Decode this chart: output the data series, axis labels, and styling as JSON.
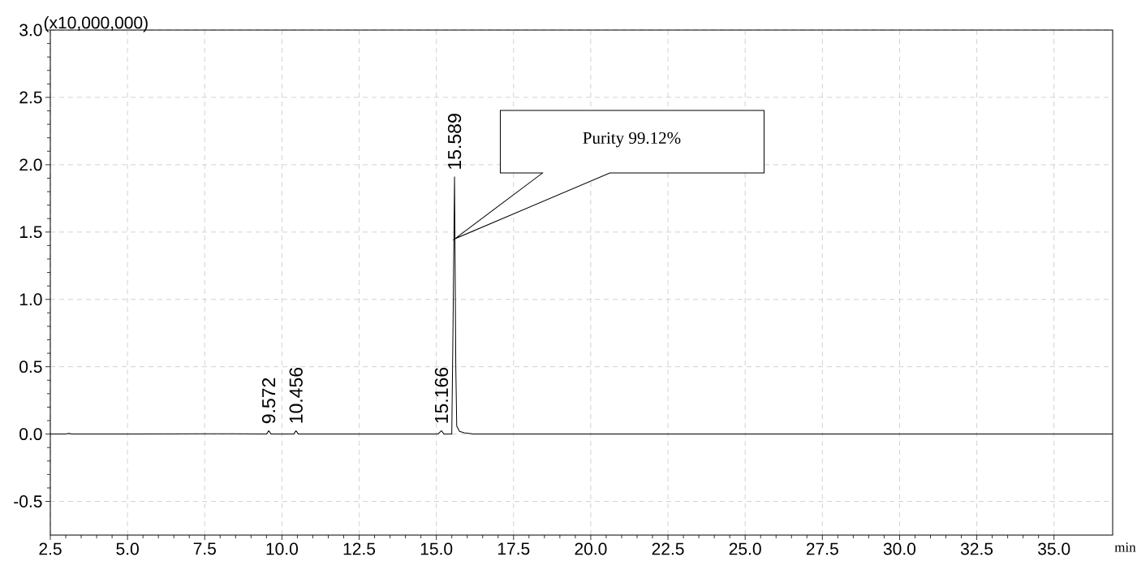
{
  "chart_data": {
    "type": "line",
    "xlabel": "min",
    "ylabel": "(x10,000,000)",
    "color": "#000000",
    "marker": "none",
    "line_style": "solid",
    "grid": true,
    "x": [
      2.5,
      3.0,
      3.1,
      3.2,
      5.0,
      8.4,
      9.5,
      9.572,
      9.65,
      10.38,
      10.456,
      10.53,
      12.0,
      15.05,
      15.166,
      15.25,
      15.5,
      15.54,
      15.589,
      15.63,
      15.66,
      15.75,
      15.9,
      16.2,
      22.3,
      36.9
    ],
    "values": [
      0,
      0,
      0.005,
      0,
      0,
      0.002,
      0,
      0.025,
      0,
      0,
      0.025,
      0,
      0,
      0,
      0.025,
      0,
      0,
      0.8,
      1.91,
      0.5,
      0.06,
      0.02,
      0.01,
      0,
      0,
      0
    ],
    "xlim": [
      2.5,
      36.9
    ],
    "ylim": [
      -0.75,
      3.0
    ],
    "xticks": [
      {
        "value": 2.5,
        "label": "2.5"
      },
      {
        "value": 5,
        "label": "5.0"
      },
      {
        "value": 7.5,
        "label": "7.5"
      },
      {
        "value": 10,
        "label": "10.0"
      },
      {
        "value": 12.5,
        "label": "12.5"
      },
      {
        "value": 15,
        "label": "15.0"
      },
      {
        "value": 17.5,
        "label": "17.5"
      },
      {
        "value": 20,
        "label": "20.0"
      },
      {
        "value": 22.5,
        "label": "22.5"
      },
      {
        "value": 25,
        "label": "25.0"
      },
      {
        "value": 27.5,
        "label": "27.5"
      },
      {
        "value": 30,
        "label": "30.0"
      },
      {
        "value": 32.5,
        "label": "32.5"
      },
      {
        "value": 35,
        "label": "35.0"
      }
    ],
    "yticks": [
      -0.5,
      {
        "value": 0,
        "label": "0.0"
      },
      0.5,
      {
        "value": 1,
        "label": "1.0"
      },
      1.5,
      {
        "value": 2,
        "label": "2.0"
      },
      2.5,
      {
        "value": 3,
        "label": "3.0"
      }
    ],
    "annotations": [
      {
        "text": "9.572",
        "x": 9.572,
        "y": 0.025
      },
      {
        "text": "10.456",
        "x": 10.456,
        "y": 0.025
      },
      {
        "text": "15.166",
        "x": 15.166,
        "y": 0.025
      },
      {
        "text": "15.589",
        "x": 15.589,
        "y": 1.91
      },
      "Purity 99.12%"
    ]
  }
}
